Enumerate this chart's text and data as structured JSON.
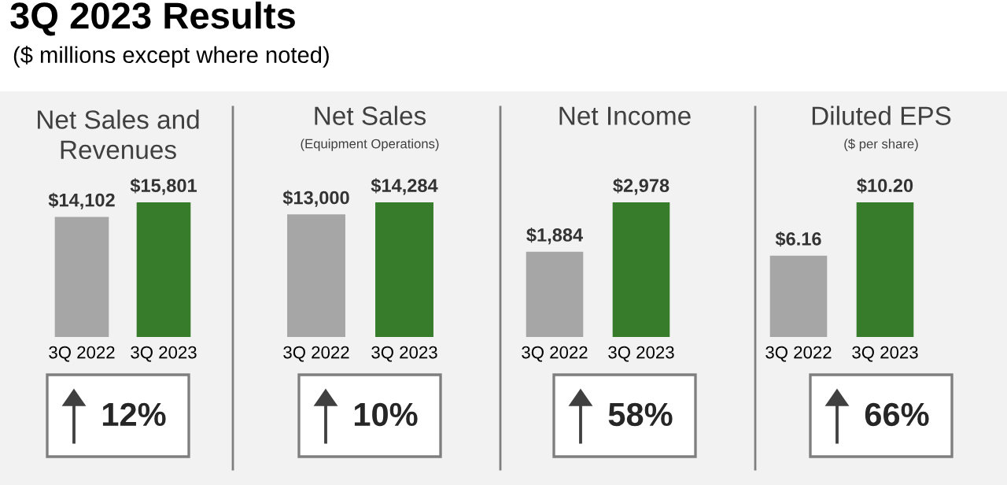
{
  "chart_data": [
    {
      "type": "other",
      "title": "3Q 2023 Results",
      "subtitle": "($ millions except where noted)"
    },
    {
      "type": "bar",
      "title": "Net Sales and\nRevenues",
      "categories": [
        "3Q 2022",
        "3Q 2023"
      ],
      "values": [
        14102,
        15801
      ],
      "colors": [
        "#a6a6a6",
        "#367c2b"
      ],
      "value_labels": [
        "$14,102",
        "$15,801"
      ],
      "annotations": [
        "12%"
      ]
    },
    {
      "type": "bar",
      "title": "Net Sales",
      "subtitle": "(Equipment Operations)",
      "categories": [
        "3Q 2022",
        "3Q 2023"
      ],
      "values": [
        13000,
        14284
      ],
      "colors": [
        "#a6a6a6",
        "#367c2b"
      ],
      "value_labels": [
        "$13,000",
        "$14,284"
      ],
      "annotations": [
        "10%"
      ]
    },
    {
      "type": "bar",
      "title": "Net Income",
      "categories": [
        "3Q 2022",
        "3Q 2023"
      ],
      "values": [
        1884,
        2978
      ],
      "colors": [
        "#a6a6a6",
        "#367c2b"
      ],
      "value_labels": [
        "$1,884",
        "$2,978"
      ],
      "annotations": [
        "58%"
      ]
    },
    {
      "type": "bar",
      "title": "Diluted EPS",
      "subtitle": "($ per share)",
      "categories": [
        "3Q 2022",
        "3Q 2023"
      ],
      "values": [
        6.16,
        10.2
      ],
      "colors": [
        "#a6a6a6",
        "#367c2b"
      ],
      "value_labels": [
        "$6.16",
        "$10.20"
      ],
      "annotations": [
        "66%"
      ]
    }
  ]
}
